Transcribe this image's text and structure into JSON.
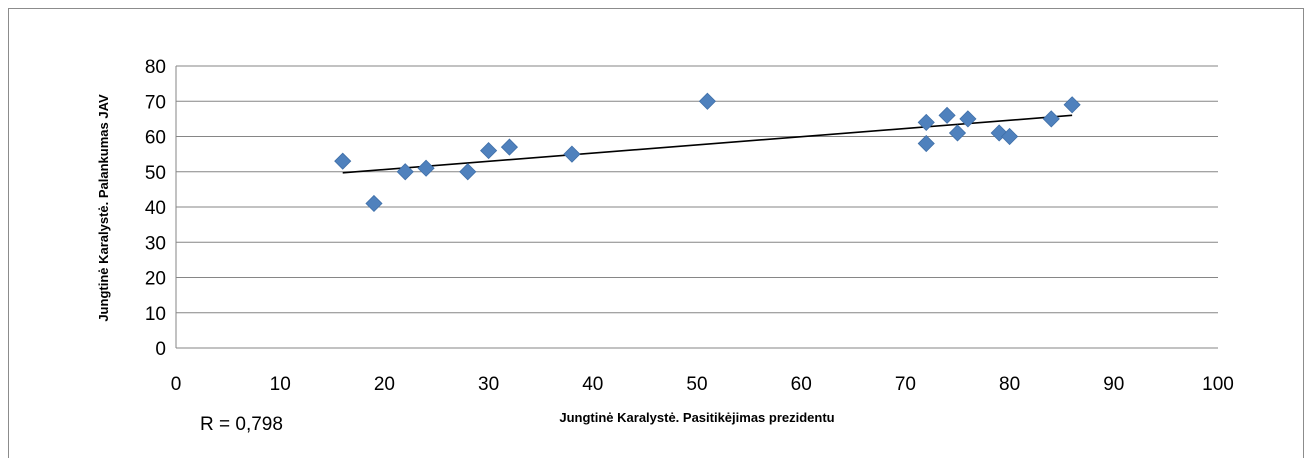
{
  "chart_data": {
    "type": "scatter",
    "xlabel": "Jungtinė Karalystė. Pasitikėjimas prezidentu",
    "ylabel": "Jungtinė Karalystė. Palankumas JAV",
    "xlim": [
      0,
      100
    ],
    "ylim": [
      0,
      80
    ],
    "x_ticks": [
      0,
      10,
      20,
      30,
      40,
      50,
      60,
      70,
      80,
      90,
      100
    ],
    "y_ticks": [
      0,
      10,
      20,
      30,
      40,
      50,
      60,
      70,
      80
    ],
    "grid": "horizontal",
    "annotation": "R = 0,798",
    "marker_color": "#4f81bd",
    "points": [
      {
        "x": 16,
        "y": 53
      },
      {
        "x": 19,
        "y": 41
      },
      {
        "x": 22,
        "y": 50
      },
      {
        "x": 24,
        "y": 51
      },
      {
        "x": 28,
        "y": 50
      },
      {
        "x": 30,
        "y": 56
      },
      {
        "x": 32,
        "y": 57
      },
      {
        "x": 38,
        "y": 55
      },
      {
        "x": 51,
        "y": 70
      },
      {
        "x": 72,
        "y": 64
      },
      {
        "x": 72,
        "y": 58
      },
      {
        "x": 74,
        "y": 66
      },
      {
        "x": 75,
        "y": 61
      },
      {
        "x": 76,
        "y": 65
      },
      {
        "x": 79,
        "y": 61
      },
      {
        "x": 80,
        "y": 60
      },
      {
        "x": 84,
        "y": 65
      },
      {
        "x": 86,
        "y": 69
      }
    ],
    "trendline": {
      "x": [
        16,
        86
      ],
      "y": [
        49.7,
        66.0
      ]
    }
  }
}
